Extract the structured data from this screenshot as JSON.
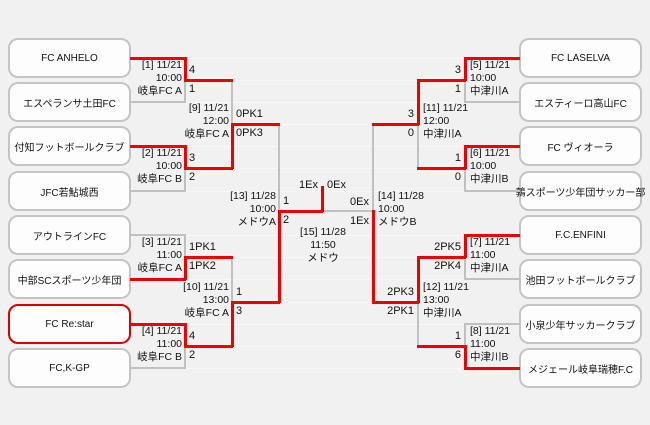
{
  "bracket": {
    "teams_left": [
      {
        "name": "FC ANHELO",
        "highlight": false
      },
      {
        "name": "エスペランサ土田FC",
        "highlight": false
      },
      {
        "name": "付知フットボールクラブ",
        "highlight": false
      },
      {
        "name": "JFC若鮎城西",
        "highlight": false
      },
      {
        "name": "アウトラインFC",
        "highlight": false
      },
      {
        "name": "中部SCスポーツ少年団",
        "highlight": false
      },
      {
        "name": "FC Re:star",
        "highlight": true
      },
      {
        "name": "FC,K-GP",
        "highlight": false
      }
    ],
    "teams_right": [
      {
        "name": "FC LASELVA",
        "highlight": false
      },
      {
        "name": "エスティーロ高山FC",
        "highlight": false
      },
      {
        "name": "FC ヴィオーラ",
        "highlight": false
      },
      {
        "name": "鶉スポーツ少年団サッカー部",
        "highlight": false
      },
      {
        "name": "F.C.ENFINI",
        "highlight": false
      },
      {
        "name": "池田フットボールクラブ",
        "highlight": false
      },
      {
        "name": "小泉少年サッカークラブ",
        "highlight": false
      },
      {
        "name": "メジェール岐阜瑞穂F.C",
        "highlight": false
      }
    ],
    "matches": {
      "m1": {
        "label": "[1] 11/21",
        "time": "10:00",
        "venue": "岐阜FC A",
        "score_top": "4",
        "score_bottom": "1"
      },
      "m2": {
        "label": "[2] 11/21",
        "time": "10:00",
        "venue": "岐阜FC B",
        "score_top": "3",
        "score_bottom": "2"
      },
      "m3": {
        "label": "[3] 11/21",
        "time": "11:00",
        "venue": "岐阜FC A",
        "score_top": "1PK1",
        "score_bottom": "1PK2"
      },
      "m4": {
        "label": "[4] 11/21",
        "time": "11:00",
        "venue": "岐阜FC B",
        "score_top": "4",
        "score_bottom": "2"
      },
      "m5": {
        "label": "[5] 11/21",
        "time": "10:00",
        "venue": "中津川A",
        "score_top": "3",
        "score_bottom": "1"
      },
      "m6": {
        "label": "[6] 11/21",
        "time": "10:00",
        "venue": "中津川B",
        "score_top": "1",
        "score_bottom": "0"
      },
      "m7": {
        "label": "[7] 11/21",
        "time": "11:00",
        "venue": "中津川A",
        "score_top": "2PK5",
        "score_bottom": "2PK4"
      },
      "m8": {
        "label": "[8] 11/21",
        "time": "11:00",
        "venue": "中津川B",
        "score_top": "1",
        "score_bottom": "6"
      },
      "m9": {
        "label": "[9] 11/21",
        "time": "12:00",
        "venue": "岐阜FC A",
        "score_top": "0PK1",
        "score_bottom": "0PK3"
      },
      "m10": {
        "label": "[10] 11/21",
        "time": "13:00",
        "venue": "岐阜FC A",
        "score_top": "1",
        "score_bottom": "3"
      },
      "m11": {
        "label": "[11] 11/21",
        "time": "12:00",
        "venue": "中津川A",
        "score_top": "3",
        "score_bottom": "0"
      },
      "m12": {
        "label": "[12] 11/21",
        "time": "13:00",
        "venue": "中津川A",
        "score_top": "2PK3",
        "score_bottom": "2PK1"
      },
      "m13": {
        "label": "[13] 11/28",
        "time": "10:00",
        "venue": "メドウA",
        "score_top": "1",
        "score_bottom": "2"
      },
      "m14": {
        "label": "[14] 11/28",
        "time": "10:00",
        "venue": "メドウB",
        "score_top": "0Ex",
        "score_bottom": "1Ex"
      },
      "m15": {
        "label": "[15] 11/28",
        "time": "11:50",
        "venue": "メドウ",
        "score_left": "1Ex",
        "score_right": "0Ex"
      }
    },
    "colors": {
      "winner_path": "#ee0000",
      "line": "#c0c0c0",
      "highlight_border": "#e00000"
    }
  }
}
